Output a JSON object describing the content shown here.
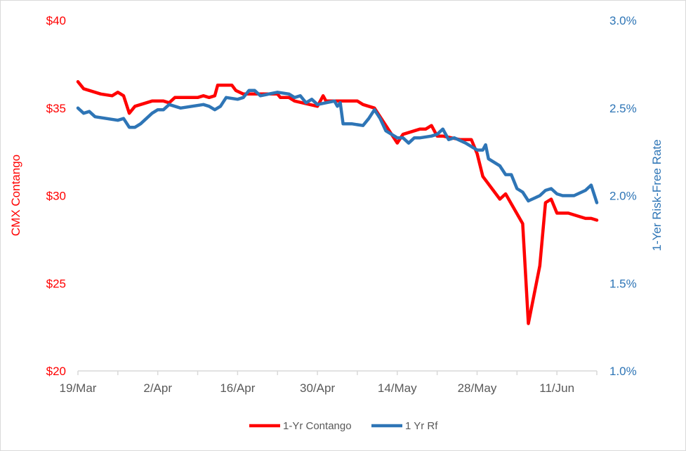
{
  "chart_data": {
    "type": "line",
    "title": "",
    "xlabel": "",
    "x_tick_labels": [
      "19/Mar",
      "2/Apr",
      "16/Apr",
      "30/Apr",
      "14/May",
      "28/May",
      "11/Jun"
    ],
    "y_left": {
      "label": "CMX Contango",
      "ticks": [
        "$20",
        "$25",
        "$30",
        "$35",
        "$40"
      ],
      "range": [
        20,
        40
      ],
      "color": "#ff0000"
    },
    "y_right": {
      "label": "1-Yer Risk-Free Rate",
      "ticks": [
        "1.0%",
        "1.5%",
        "2.0%",
        "2.5%",
        "3.0%"
      ],
      "range": [
        1.0,
        3.0
      ],
      "color": "#2e75b6"
    },
    "x_range_days": [
      0,
      91
    ],
    "series": [
      {
        "name": "1-Yr Contango",
        "axis": "left",
        "color": "#ff0000",
        "points": [
          [
            0,
            36.5
          ],
          [
            1,
            36.1
          ],
          [
            2,
            36.0
          ],
          [
            4,
            35.8
          ],
          [
            6,
            35.7
          ],
          [
            7,
            35.9
          ],
          [
            8,
            35.7
          ],
          [
            9,
            34.7
          ],
          [
            10,
            35.1
          ],
          [
            13,
            35.4
          ],
          [
            15,
            35.4
          ],
          [
            16,
            35.3
          ],
          [
            17,
            35.6
          ],
          [
            21,
            35.6
          ],
          [
            22,
            35.7
          ],
          [
            23,
            35.6
          ],
          [
            24,
            35.7
          ],
          [
            24.5,
            36.3
          ],
          [
            27,
            36.3
          ],
          [
            27.7,
            36.0
          ],
          [
            29,
            35.8
          ],
          [
            35,
            35.8
          ],
          [
            35.5,
            35.6
          ],
          [
            37,
            35.6
          ],
          [
            38,
            35.4
          ],
          [
            42,
            35.1
          ],
          [
            43,
            35.7
          ],
          [
            43.5,
            35.4
          ],
          [
            48,
            35.4
          ],
          [
            49,
            35.4
          ],
          [
            50,
            35.2
          ],
          [
            52,
            35.0
          ],
          [
            56,
            33.0
          ],
          [
            57,
            33.5
          ],
          [
            60,
            33.8
          ],
          [
            61,
            33.8
          ],
          [
            62,
            34.0
          ],
          [
            63,
            33.4
          ],
          [
            64,
            33.4
          ],
          [
            67,
            33.2
          ],
          [
            69,
            33.2
          ],
          [
            70,
            32.4
          ],
          [
            71,
            31.1
          ],
          [
            74,
            29.8
          ],
          [
            75,
            30.1
          ],
          [
            78,
            28.4
          ],
          [
            79,
            22.7
          ],
          [
            81,
            26.0
          ],
          [
            82,
            29.6
          ],
          [
            83,
            29.8
          ],
          [
            84,
            29.0
          ],
          [
            86,
            29.0
          ],
          [
            89,
            28.7
          ],
          [
            90,
            28.7
          ],
          [
            91,
            28.6
          ]
        ]
      },
      {
        "name": "1 Yr Rf",
        "axis": "right",
        "color": "#2e75b6",
        "points": [
          [
            0,
            2.5
          ],
          [
            1,
            2.47
          ],
          [
            2,
            2.48
          ],
          [
            3,
            2.45
          ],
          [
            7,
            2.43
          ],
          [
            8,
            2.44
          ],
          [
            9,
            2.39
          ],
          [
            10,
            2.39
          ],
          [
            11,
            2.41
          ],
          [
            13,
            2.47
          ],
          [
            14,
            2.49
          ],
          [
            15,
            2.49
          ],
          [
            16,
            2.52
          ],
          [
            18,
            2.5
          ],
          [
            20,
            2.51
          ],
          [
            22,
            2.52
          ],
          [
            23,
            2.51
          ],
          [
            24,
            2.49
          ],
          [
            25,
            2.51
          ],
          [
            26,
            2.56
          ],
          [
            28,
            2.55
          ],
          [
            29,
            2.56
          ],
          [
            30,
            2.6
          ],
          [
            31,
            2.6
          ],
          [
            32,
            2.57
          ],
          [
            35,
            2.59
          ],
          [
            37,
            2.58
          ],
          [
            38,
            2.56
          ],
          [
            39,
            2.57
          ],
          [
            40,
            2.53
          ],
          [
            41,
            2.55
          ],
          [
            42,
            2.52
          ],
          [
            45,
            2.54
          ],
          [
            45.5,
            2.51
          ],
          [
            46,
            2.53
          ],
          [
            46.5,
            2.41
          ],
          [
            48,
            2.41
          ],
          [
            50,
            2.4
          ],
          [
            51,
            2.44
          ],
          [
            52,
            2.49
          ],
          [
            53,
            2.44
          ],
          [
            54,
            2.37
          ],
          [
            56,
            2.33
          ],
          [
            57,
            2.33
          ],
          [
            58,
            2.3
          ],
          [
            59,
            2.33
          ],
          [
            60,
            2.33
          ],
          [
            62,
            2.34
          ],
          [
            63,
            2.35
          ],
          [
            64,
            2.38
          ],
          [
            65,
            2.32
          ],
          [
            66,
            2.33
          ],
          [
            68,
            2.3
          ],
          [
            70,
            2.26
          ],
          [
            71,
            2.26
          ],
          [
            71.5,
            2.29
          ],
          [
            72,
            2.21
          ],
          [
            74,
            2.17
          ],
          [
            75,
            2.12
          ],
          [
            76,
            2.12
          ],
          [
            77,
            2.04
          ],
          [
            78,
            2.02
          ],
          [
            79,
            1.97
          ],
          [
            81,
            2.0
          ],
          [
            82,
            2.03
          ],
          [
            83,
            2.04
          ],
          [
            84,
            2.01
          ],
          [
            85,
            2.0
          ],
          [
            87,
            2.0
          ],
          [
            89,
            2.03
          ],
          [
            90,
            2.06
          ],
          [
            91,
            1.96
          ]
        ]
      }
    ],
    "legend": {
      "position": "bottom",
      "items": [
        {
          "label": "1-Yr Contango",
          "color": "#ff0000"
        },
        {
          "label": "1 Yr Rf",
          "color": "#2e75b6"
        }
      ]
    },
    "grid": false
  }
}
